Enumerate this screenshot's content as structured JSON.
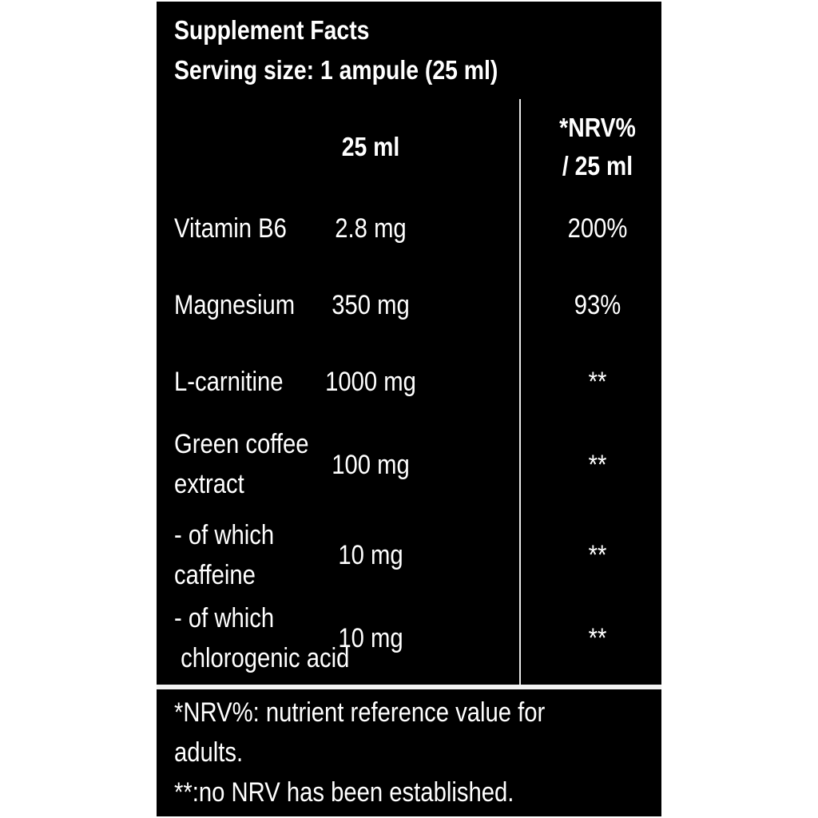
{
  "title": "Supplement Facts",
  "serving_size": "Serving size: 1 ampule (25 ml)",
  "columns": {
    "amount": "25 ml",
    "nrv_line1": "*NRV%",
    "nrv_line2": "/ 25 ml"
  },
  "rows": [
    {
      "name_l1": "Vitamin B6",
      "name_l2": "",
      "amount": "2.8 mg",
      "nrv": "200%"
    },
    {
      "name_l1": "Magnesium",
      "name_l2": "",
      "amount": "350 mg",
      "nrv": "93%"
    },
    {
      "name_l1": "L-carnitine",
      "name_l2": "",
      "amount": "1000 mg",
      "nrv": "**"
    },
    {
      "name_l1": "Green coffee",
      "name_l2": "extract",
      "amount": "100 mg",
      "nrv": "**"
    },
    {
      "name_l1": "- of which",
      "name_l2": "caffeine",
      "amount": "10 mg",
      "nrv": "**"
    },
    {
      "name_l1": "- of which",
      "name_l2": " chlorogenic acid",
      "amount": "10 mg",
      "nrv": "**"
    }
  ],
  "footnotes": {
    "line1": "*NRV%: nutrient reference value for",
    "line2": "adults.",
    "line3": "**:no NRV has been established."
  }
}
